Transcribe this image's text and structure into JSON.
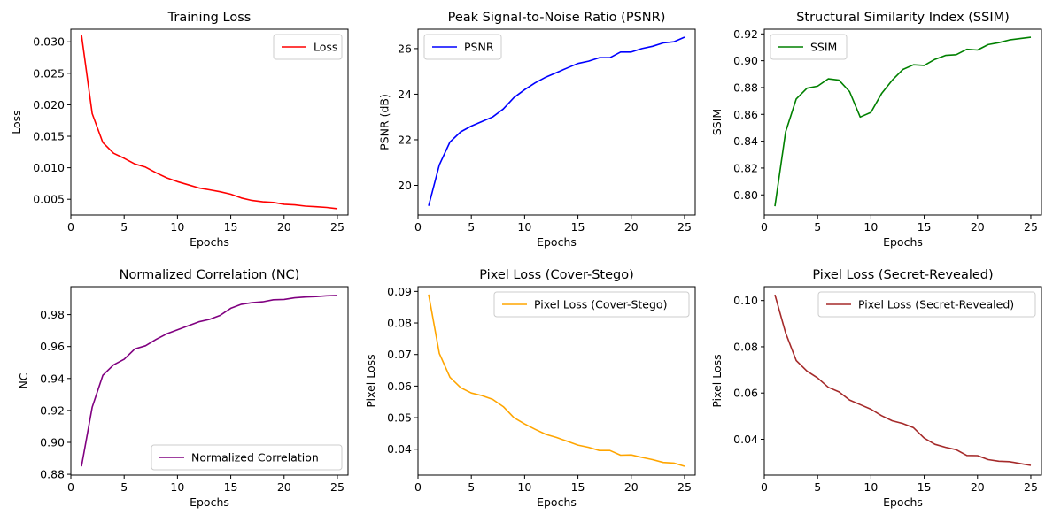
{
  "chart_data": [
    {
      "type": "line",
      "title": "Training Loss",
      "xlabel": "Epochs",
      "ylabel": "Loss",
      "xlim": [
        0,
        26
      ],
      "ylim": [
        0.0025,
        0.032
      ],
      "xticks": [
        0,
        5,
        10,
        15,
        20,
        25
      ],
      "xtick_labels": [
        "0",
        "5",
        "10",
        "15",
        "20",
        "25"
      ],
      "yticks": [
        0.005,
        0.01,
        0.015,
        0.02,
        0.025,
        0.03
      ],
      "ytick_labels": [
        "0.005",
        "0.010",
        "0.015",
        "0.020",
        "0.025",
        "0.030"
      ],
      "legend_position": "top-right",
      "grid": false,
      "series": [
        {
          "name": "Loss",
          "color": "#ff0000",
          "x": [
            1,
            2,
            3,
            4,
            5,
            6,
            7,
            8,
            9,
            10,
            11,
            12,
            13,
            14,
            15,
            16,
            17,
            18,
            19,
            20,
            21,
            22,
            23,
            24,
            25
          ],
          "y": [
            0.0311,
            0.0186,
            0.014,
            0.0123,
            0.0115,
            0.0106,
            0.0101,
            0.0092,
            0.0084,
            0.0078,
            0.0073,
            0.0068,
            0.0065,
            0.0062,
            0.0058,
            0.0052,
            0.0048,
            0.0046,
            0.0045,
            0.0042,
            0.0041,
            0.0039,
            0.0038,
            0.0037,
            0.0035
          ]
        }
      ]
    },
    {
      "type": "line",
      "title": "Peak Signal-to-Noise Ratio (PSNR)",
      "xlabel": "Epochs",
      "ylabel": "PSNR (dB)",
      "xlim": [
        0,
        26
      ],
      "ylim": [
        18.7,
        26.85
      ],
      "xticks": [
        0,
        5,
        10,
        15,
        20,
        25
      ],
      "xtick_labels": [
        "0",
        "5",
        "10",
        "15",
        "20",
        "25"
      ],
      "yticks": [
        20,
        22,
        24,
        26
      ],
      "ytick_labels": [
        "20",
        "22",
        "24",
        "26"
      ],
      "legend_position": "top-left",
      "grid": false,
      "series": [
        {
          "name": "PSNR",
          "color": "#0000ff",
          "x": [
            1,
            2,
            3,
            4,
            5,
            6,
            7,
            8,
            9,
            10,
            11,
            12,
            13,
            14,
            15,
            16,
            17,
            18,
            19,
            20,
            21,
            22,
            23,
            24,
            25
          ],
          "y": [
            19.1,
            20.9,
            21.9,
            22.35,
            22.6,
            22.8,
            23.0,
            23.35,
            23.85,
            24.2,
            24.5,
            24.75,
            24.95,
            25.15,
            25.35,
            25.45,
            25.6,
            25.6,
            25.85,
            25.85,
            26.0,
            26.1,
            26.25,
            26.3,
            26.5
          ]
        }
      ]
    },
    {
      "type": "line",
      "title": "Structural Similarity Index (SSIM)",
      "xlabel": "Epochs",
      "ylabel": "SSIM",
      "xlim": [
        0,
        26
      ],
      "ylim": [
        0.785,
        0.9235
      ],
      "xticks": [
        0,
        5,
        10,
        15,
        20,
        25
      ],
      "xtick_labels": [
        "0",
        "5",
        "10",
        "15",
        "20",
        "25"
      ],
      "yticks": [
        0.8,
        0.82,
        0.84,
        0.86,
        0.88,
        0.9,
        0.92
      ],
      "ytick_labels": [
        "0.80",
        "0.82",
        "0.84",
        "0.86",
        "0.88",
        "0.90",
        "0.92"
      ],
      "legend_position": "top-left",
      "grid": false,
      "series": [
        {
          "name": "SSIM",
          "color": "#008000",
          "x": [
            1,
            2,
            3,
            4,
            5,
            6,
            7,
            8,
            9,
            10,
            11,
            12,
            13,
            14,
            15,
            16,
            17,
            18,
            19,
            20,
            21,
            22,
            23,
            24,
            25
          ],
          "y": [
            0.7915,
            0.847,
            0.8715,
            0.8795,
            0.881,
            0.8865,
            0.8855,
            0.877,
            0.858,
            0.8615,
            0.8755,
            0.8855,
            0.8935,
            0.897,
            0.8965,
            0.901,
            0.904,
            0.9045,
            0.9085,
            0.908,
            0.912,
            0.9135,
            0.9155,
            0.9165,
            0.9175
          ]
        }
      ]
    },
    {
      "type": "line",
      "title": "Normalized Correlation (NC)",
      "xlabel": "Epochs",
      "ylabel": "NC",
      "xlim": [
        0,
        26
      ],
      "ylim": [
        0.8795,
        0.9975
      ],
      "xticks": [
        0,
        5,
        10,
        15,
        20,
        25
      ],
      "xtick_labels": [
        "0",
        "5",
        "10",
        "15",
        "20",
        "25"
      ],
      "yticks": [
        0.88,
        0.9,
        0.92,
        0.94,
        0.96,
        0.98
      ],
      "ytick_labels": [
        "0.88",
        "0.90",
        "0.92",
        "0.94",
        "0.96",
        "0.98"
      ],
      "legend_position": "bottom-right",
      "grid": false,
      "series": [
        {
          "name": "Normalized Correlation",
          "color": "#800080",
          "x": [
            1,
            2,
            3,
            4,
            5,
            6,
            7,
            8,
            9,
            10,
            11,
            12,
            13,
            14,
            15,
            16,
            17,
            18,
            19,
            20,
            21,
            22,
            23,
            24,
            25
          ],
          "y": [
            0.885,
            0.922,
            0.942,
            0.9485,
            0.952,
            0.9585,
            0.9605,
            0.9645,
            0.968,
            0.9705,
            0.973,
            0.9755,
            0.977,
            0.9795,
            0.984,
            0.9865,
            0.9875,
            0.988,
            0.9893,
            0.9895,
            0.9905,
            0.991,
            0.9913,
            0.9918,
            0.992
          ]
        }
      ]
    },
    {
      "type": "line",
      "title": "Pixel Loss (Cover-Stego)",
      "xlabel": "Epochs",
      "ylabel": "Pixel Loss",
      "xlim": [
        0,
        26
      ],
      "ylim": [
        0.0318,
        0.0915
      ],
      "xticks": [
        0,
        5,
        10,
        15,
        20,
        25
      ],
      "xtick_labels": [
        "0",
        "5",
        "10",
        "15",
        "20",
        "25"
      ],
      "yticks": [
        0.04,
        0.05,
        0.06,
        0.07,
        0.08,
        0.09
      ],
      "ytick_labels": [
        "0.04",
        "0.05",
        "0.06",
        "0.07",
        "0.08",
        "0.09"
      ],
      "legend_position": "top-right",
      "grid": false,
      "series": [
        {
          "name": "Pixel Loss (Cover-Stego)",
          "color": "#ffa500",
          "x": [
            1,
            2,
            3,
            4,
            5,
            6,
            7,
            8,
            9,
            10,
            11,
            12,
            13,
            14,
            15,
            16,
            17,
            18,
            19,
            20,
            21,
            22,
            23,
            24,
            25
          ],
          "y": [
            0.089,
            0.0703,
            0.0628,
            0.0595,
            0.0578,
            0.057,
            0.0558,
            0.0535,
            0.05,
            0.048,
            0.0463,
            0.0447,
            0.0437,
            0.0425,
            0.0413,
            0.0406,
            0.0396,
            0.0396,
            0.0381,
            0.0382,
            0.0374,
            0.0367,
            0.0358,
            0.0356,
            0.0346
          ]
        }
      ]
    },
    {
      "type": "line",
      "title": "Pixel Loss (Secret-Revealed)",
      "xlabel": "Epochs",
      "ylabel": "Pixel Loss",
      "xlim": [
        0,
        26
      ],
      "ylim": [
        0.0245,
        0.106
      ],
      "xticks": [
        0,
        5,
        10,
        15,
        20,
        25
      ],
      "xtick_labels": [
        "0",
        "5",
        "10",
        "15",
        "20",
        "25"
      ],
      "yticks": [
        0.04,
        0.06,
        0.08,
        0.1
      ],
      "ytick_labels": [
        "0.04",
        "0.06",
        "0.08",
        "0.10"
      ],
      "legend_position": "top-right",
      "grid": false,
      "series": [
        {
          "name": "Pixel Loss (Secret-Revealed)",
          "color": "#a52a2a",
          "x": [
            1,
            2,
            3,
            4,
            5,
            6,
            7,
            8,
            9,
            10,
            11,
            12,
            13,
            14,
            15,
            16,
            17,
            18,
            19,
            20,
            21,
            22,
            23,
            24,
            25
          ],
          "y": [
            0.1025,
            0.086,
            0.074,
            0.0695,
            0.0665,
            0.0625,
            0.0605,
            0.057,
            0.055,
            0.053,
            0.0502,
            0.048,
            0.0468,
            0.045,
            0.0405,
            0.0378,
            0.0365,
            0.0355,
            0.033,
            0.0329,
            0.0312,
            0.0305,
            0.0303,
            0.0295,
            0.0287
          ]
        }
      ]
    }
  ]
}
